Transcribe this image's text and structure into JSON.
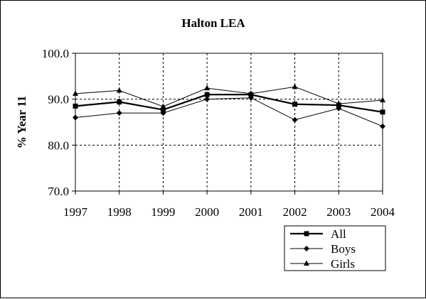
{
  "chart_data": {
    "type": "line",
    "title": "Halton LEA",
    "xlabel": "",
    "ylabel": "% Year 11",
    "categories": [
      "1997",
      "1998",
      "1999",
      "2000",
      "2001",
      "2002",
      "2003",
      "2004"
    ],
    "ylim": [
      70,
      100
    ],
    "yticks": [
      "70.0",
      "80.0",
      "90.0",
      "100.0"
    ],
    "grid": true,
    "legend_position": "bottom-right",
    "series": [
      {
        "name": "All",
        "marker": "square",
        "values": [
          88.5,
          89.4,
          87.7,
          91.0,
          91.0,
          88.9,
          88.7,
          87.2
        ]
      },
      {
        "name": "Boys",
        "marker": "diamond",
        "values": [
          86.0,
          87.0,
          87.0,
          90.0,
          90.3,
          85.5,
          88.0,
          84.1
        ]
      },
      {
        "name": "Girls",
        "marker": "triangle",
        "values": [
          91.2,
          91.9,
          88.4,
          92.4,
          91.2,
          92.7,
          89.0,
          89.8
        ]
      }
    ]
  }
}
